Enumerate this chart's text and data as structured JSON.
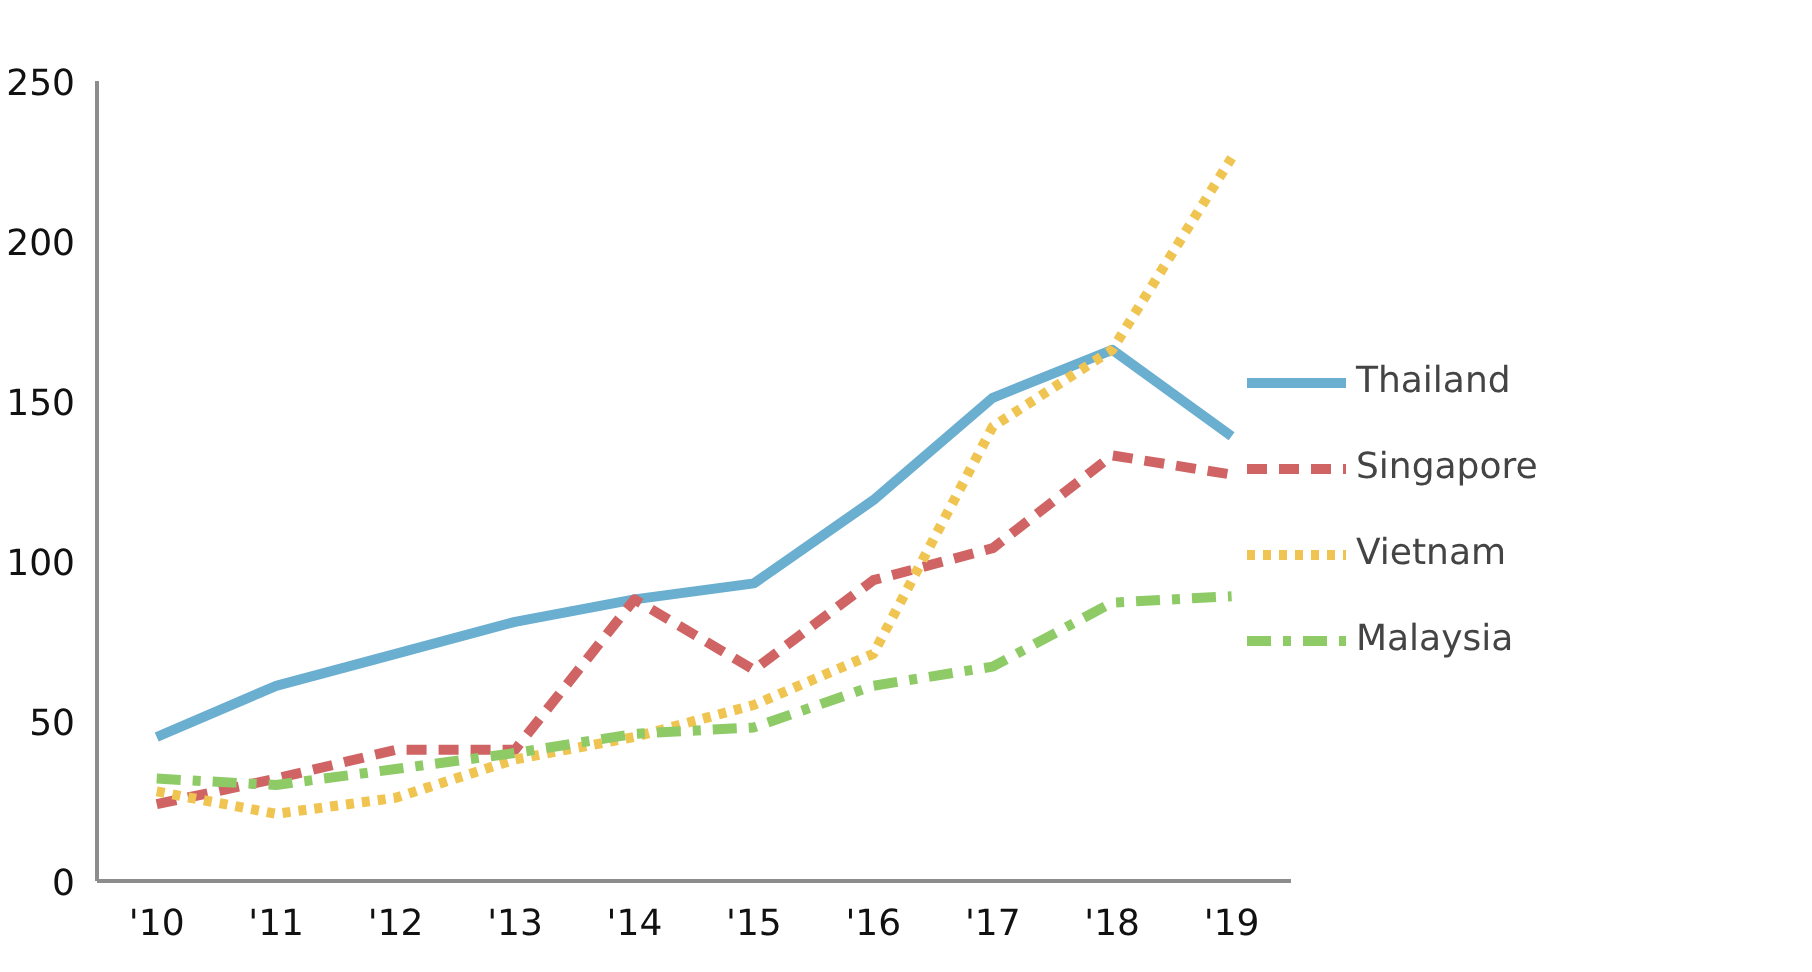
{
  "chart_data": {
    "type": "line",
    "categories": [
      "'10",
      "'11",
      "'12",
      "'13",
      "'14",
      "'15",
      "'16",
      "'17",
      "'18",
      "'19"
    ],
    "series": [
      {
        "name": "Thailand",
        "color": "#6aaed0",
        "line_style": "solid",
        "values": [
          45,
          61,
          71,
          81,
          88,
          93,
          119,
          151,
          166,
          139
        ]
      },
      {
        "name": "Singapore",
        "color": "#d06363",
        "line_style": "dashed",
        "values": [
          24,
          32,
          41,
          41,
          88,
          66,
          94,
          104,
          133,
          127
        ]
      },
      {
        "name": "Vietnam",
        "color": "#f0c450",
        "line_style": "dotted",
        "values": [
          28,
          21,
          26,
          38,
          45,
          55,
          71,
          142,
          166,
          226
        ]
      },
      {
        "name": "Malaysia",
        "color": "#8ecb66",
        "line_style": "dashdot",
        "values": [
          32,
          30,
          35,
          40,
          46,
          48,
          61,
          67,
          87,
          89
        ]
      }
    ],
    "ylim": [
      0,
      250
    ],
    "yticks": [
      0,
      50,
      100,
      150,
      200,
      250
    ],
    "grid": false,
    "legend": "right",
    "marker": "none"
  }
}
